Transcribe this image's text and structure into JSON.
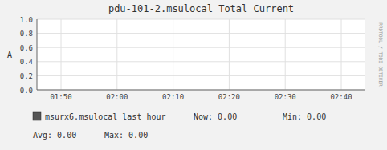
{
  "chart_data": {
    "type": "line",
    "title": "pdu-101-2.msulocal Total Current",
    "y_label": "A",
    "categories": [
      "01:50",
      "02:00",
      "02:10",
      "02:20",
      "02:30",
      "02:40"
    ],
    "series": [
      {
        "name": "msurx6.msulocal last hour",
        "color": "#555555",
        "values": [
          null,
          null,
          null,
          null,
          null,
          null
        ]
      }
    ],
    "ylim": [
      0.0,
      1.0
    ],
    "yticks": [
      {
        "value": 0,
        "label": "0.0"
      },
      0.2,
      0.4,
      0.6,
      0.8,
      {
        "value": 1,
        "label": "1.0"
      }
    ],
    "grid": true,
    "legend": "bottom",
    "annotations": [
      "Now:   0.00",
      "Min:   0.00",
      "Avg:   0.00",
      "Max:   0.00",
      "RRDTOOL / TOBI OETIKER"
    ]
  }
}
